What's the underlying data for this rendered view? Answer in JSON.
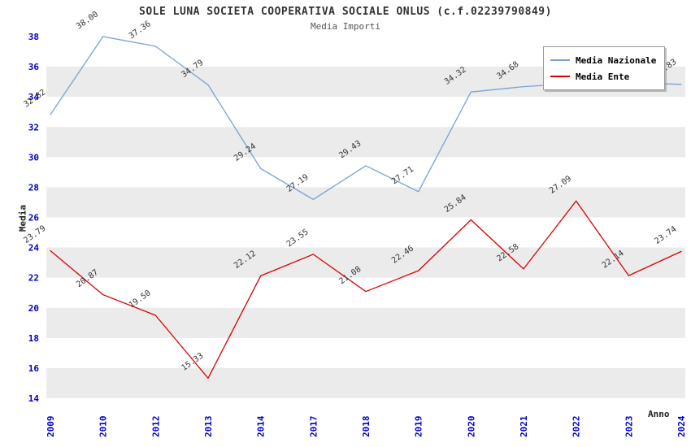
{
  "title": "SOLE LUNA SOCIETA COOPERATIVA SOCIALE ONLUS (c.f.02239790849)",
  "subtitle": "Media Importi",
  "chart_data": {
    "type": "line",
    "title": "SOLE LUNA SOCIETA COOPERATIVA SOCIALE ONLUS (c.f.02239790849)",
    "subtitle": "Media Importi",
    "xlabel": "Anno",
    "ylabel": "Media",
    "ylim": [
      14,
      38
    ],
    "ytick_step": 2,
    "grid": "alternating-bands",
    "legend_position": "top-right",
    "categories": [
      "2009",
      "2010",
      "2012",
      "2013",
      "2014",
      "2017",
      "2018",
      "2019",
      "2020",
      "2021",
      "2022",
      "2023",
      "2024"
    ],
    "series": [
      {
        "name": "Media Nazionale",
        "color": "#76a3d6",
        "values": [
          32.82,
          38.0,
          37.36,
          34.79,
          29.24,
          27.19,
          29.43,
          27.71,
          34.32,
          34.68,
          34.9,
          34.95,
          34.83
        ],
        "labels": [
          "32.82",
          "38.00",
          "37.36",
          "34.79",
          "29.24",
          "27.19",
          "29.43",
          "27.71",
          "34.32",
          "34.68",
          null,
          null,
          "34.83"
        ]
      },
      {
        "name": "Media Ente",
        "color": "#dd0000",
        "values": [
          23.79,
          20.87,
          19.5,
          15.33,
          22.12,
          23.55,
          21.08,
          22.46,
          25.84,
          22.58,
          27.09,
          22.14,
          23.74
        ],
        "labels": [
          "23.79",
          "20.87",
          "19.50",
          "15.33",
          "22.12",
          "23.55",
          "21.08",
          "22.46",
          "25.84",
          "22.58",
          "27.09",
          "22.14",
          "23.74"
        ]
      }
    ],
    "colors": {
      "band": "#ebebeb",
      "axis_text": "#0000cc",
      "point_label": "#333333"
    }
  }
}
